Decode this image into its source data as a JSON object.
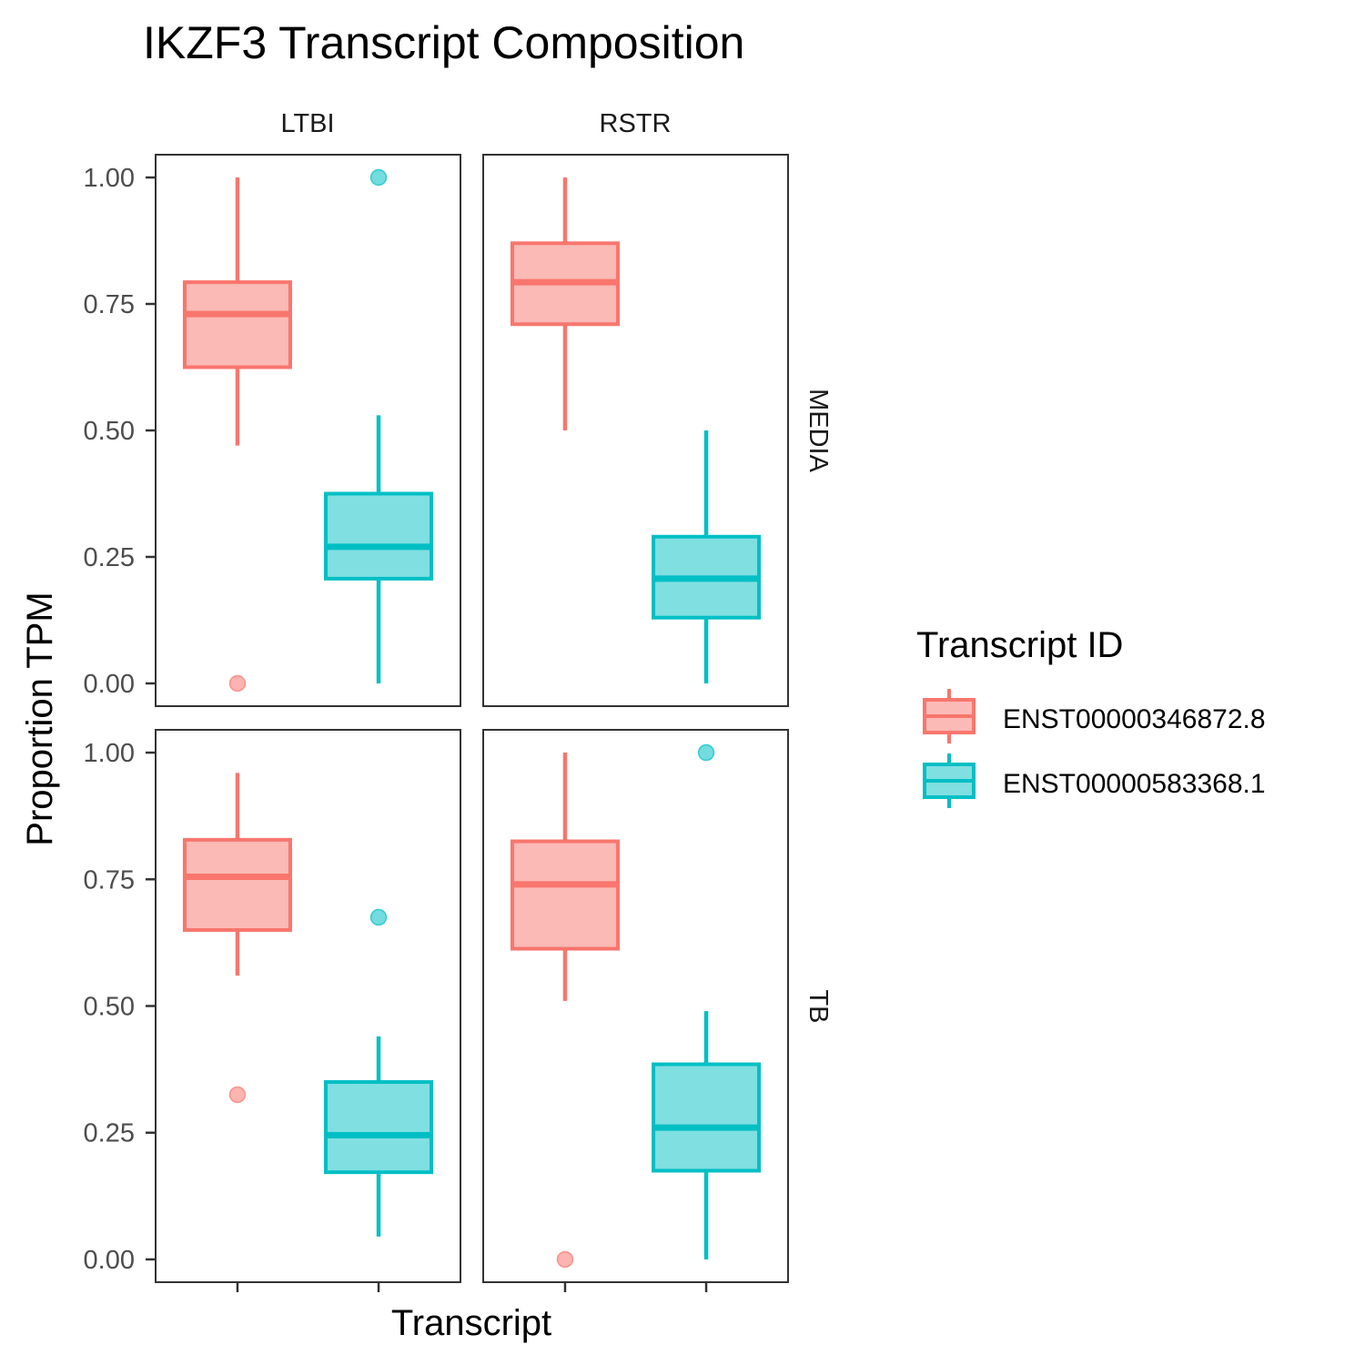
{
  "chart_data": {
    "type": "boxplot",
    "title": "IKZF3 Transcript Composition",
    "xlabel": "Transcript",
    "ylabel": "Proportion TPM",
    "ylim": [
      -0.045,
      1.045
    ],
    "yticks": [
      "0.00",
      "0.25",
      "0.50",
      "0.75",
      "1.00"
    ],
    "ytick_values": [
      0,
      0.25,
      0.5,
      0.75,
      1
    ],
    "facet_cols": [
      "LTBI",
      "RSTR"
    ],
    "facet_rows": [
      "MEDIA",
      "TB"
    ],
    "legend": {
      "title": "Transcript ID",
      "position": "right",
      "entries": [
        "ENST00000346872.8",
        "ENST00000583368.1"
      ]
    },
    "colors": {
      "ENST00000346872.8": {
        "line": "#F8766D",
        "fill": "#FBBAB6"
      },
      "ENST00000583368.1": {
        "line": "#00BFC4",
        "fill": "#80DFE1"
      }
    },
    "grid": false,
    "panels": [
      {
        "col": "LTBI",
        "row": "MEDIA",
        "boxes": [
          {
            "series": "ENST00000346872.8",
            "whisker_low": 0.47,
            "q1": 0.625,
            "median": 0.73,
            "q3": 0.793,
            "whisker_high": 1.0,
            "outliers": [
              0.0
            ]
          },
          {
            "series": "ENST00000583368.1",
            "whisker_low": 0.0,
            "q1": 0.207,
            "median": 0.27,
            "q3": 0.375,
            "whisker_high": 0.53,
            "outliers": [
              1.0
            ]
          }
        ]
      },
      {
        "col": "RSTR",
        "row": "MEDIA",
        "boxes": [
          {
            "series": "ENST00000346872.8",
            "whisker_low": 0.5,
            "q1": 0.71,
            "median": 0.793,
            "q3": 0.87,
            "whisker_high": 1.0,
            "outliers": []
          },
          {
            "series": "ENST00000583368.1",
            "whisker_low": 0.0,
            "q1": 0.13,
            "median": 0.207,
            "q3": 0.29,
            "whisker_high": 0.5,
            "outliers": []
          }
        ]
      },
      {
        "col": "LTBI",
        "row": "TB",
        "boxes": [
          {
            "series": "ENST00000346872.8",
            "whisker_low": 0.56,
            "q1": 0.65,
            "median": 0.755,
            "q3": 0.828,
            "whisker_high": 0.96,
            "outliers": [
              0.325
            ]
          },
          {
            "series": "ENST00000583368.1",
            "whisker_low": 0.045,
            "q1": 0.172,
            "median": 0.245,
            "q3": 0.35,
            "whisker_high": 0.44,
            "outliers": [
              0.675
            ]
          }
        ]
      },
      {
        "col": "RSTR",
        "row": "TB",
        "boxes": [
          {
            "series": "ENST00000346872.8",
            "whisker_low": 0.51,
            "q1": 0.613,
            "median": 0.74,
            "q3": 0.825,
            "whisker_high": 1.0,
            "outliers": [
              0.0
            ]
          },
          {
            "series": "ENST00000583368.1",
            "whisker_low": 0.0,
            "q1": 0.175,
            "median": 0.26,
            "q3": 0.385,
            "whisker_high": 0.49,
            "outliers": [
              1.0
            ]
          }
        ]
      }
    ]
  }
}
